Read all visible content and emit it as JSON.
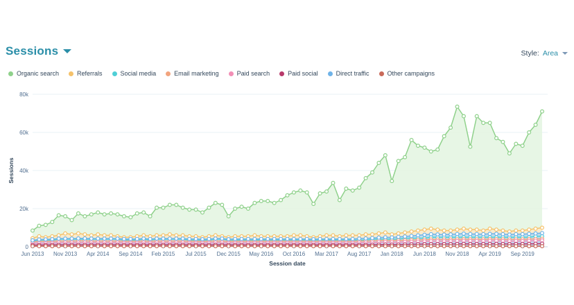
{
  "header": {
    "title": "Sessions"
  },
  "style_control": {
    "label": "Style:",
    "value": "Area"
  },
  "chart_data": {
    "type": "area",
    "title": "Sessions",
    "xlabel": "Session date",
    "ylabel": "Sessions",
    "ylim": [
      0,
      80000
    ],
    "yticks": [
      0,
      20000,
      40000,
      60000,
      80000
    ],
    "ytick_labels": [
      "0",
      "20k",
      "40k",
      "60k",
      "80k"
    ],
    "xtick_labels": [
      "Jun 2013",
      "Nov 2013",
      "Apr 2014",
      "Sep 2014",
      "Feb 2015",
      "Jul 2015",
      "Dec 2015",
      "May 2016",
      "Oct 2016",
      "Mar 2017",
      "Aug 2017",
      "Jan 2018",
      "Jun 2018",
      "Nov 2018",
      "Apr 2019",
      "Sep 2019"
    ],
    "xtick_index": [
      0,
      5,
      10,
      15,
      20,
      25,
      30,
      35,
      40,
      45,
      50,
      55,
      60,
      65,
      70,
      75
    ],
    "grid": true,
    "legend_position": "top-left",
    "n_points": 79,
    "series": [
      {
        "name": "Organic search",
        "color": "#8fd18b",
        "fill": "#e3f4e0",
        "values": [
          8500,
          11000,
          11500,
          13000,
          16500,
          16000,
          14000,
          17500,
          16000,
          17000,
          18000,
          17000,
          17500,
          17000,
          16000,
          15500,
          17500,
          18000,
          16000,
          20500,
          20500,
          22000,
          22000,
          20500,
          19500,
          19500,
          18000,
          20500,
          23000,
          22000,
          16000,
          20000,
          21000,
          20000,
          23000,
          24000,
          24000,
          23000,
          24500,
          27000,
          28500,
          29500,
          28500,
          22500,
          28000,
          29000,
          33500,
          24500,
          30500,
          29500,
          31000,
          36000,
          39000,
          44000,
          48000,
          34500,
          45000,
          47000,
          56000,
          53000,
          52000,
          50000,
          51000,
          58000,
          62500,
          73500,
          68500,
          52500,
          68500,
          65000,
          65000,
          57000,
          55000,
          49000,
          54000,
          53000,
          60000,
          64000,
          71000
        ]
      },
      {
        "name": "Referrals",
        "color": "#f5c26b",
        "fill": "#fbe9c9",
        "values": [
          4500,
          5500,
          5000,
          5500,
          6000,
          7000,
          6500,
          7000,
          6500,
          6000,
          6500,
          6000,
          6000,
          5500,
          5000,
          5000,
          5500,
          6000,
          5500,
          6000,
          6000,
          6500,
          6000,
          6000,
          5500,
          5500,
          5000,
          5500,
          6000,
          5500,
          5000,
          5500,
          5500,
          5500,
          6000,
          5500,
          5500,
          5500,
          5500,
          5500,
          6000,
          6000,
          5500,
          5000,
          5500,
          6000,
          6000,
          5500,
          6000,
          6000,
          6000,
          6500,
          6500,
          7000,
          7500,
          6500,
          7000,
          7500,
          8000,
          8500,
          9000,
          9500,
          9000,
          8500,
          8500,
          9000,
          9500,
          9000,
          9000,
          8500,
          9500,
          9000,
          8500,
          8000,
          8500,
          8500,
          9000,
          9500,
          10000
        ]
      },
      {
        "name": "Social media",
        "color": "#4fcfd6",
        "fill": "#bfe7ea",
        "values": [
          3000,
          3500,
          3500,
          3500,
          4000,
          4000,
          4000,
          4000,
          4000,
          4000,
          4000,
          4000,
          4000,
          4000,
          3500,
          3500,
          3500,
          4000,
          3500,
          4000,
          4000,
          4000,
          4000,
          4000,
          3500,
          3500,
          3500,
          3500,
          4000,
          4000,
          3500,
          3500,
          3500,
          3500,
          3500,
          3500,
          3500,
          3500,
          3500,
          3500,
          3500,
          3500,
          3500,
          3500,
          3500,
          3500,
          3500,
          3500,
          3500,
          3500,
          3500,
          3500,
          4000,
          4000,
          4000,
          4000,
          4000,
          4500,
          4500,
          4500,
          4500,
          5000,
          5000,
          5000,
          5000,
          5000,
          5000,
          5000,
          5000,
          5000,
          5000,
          5000,
          5000,
          5000,
          5000,
          5000,
          5000,
          5500,
          5500
        ]
      },
      {
        "name": "Email marketing",
        "color": "#f2a47e",
        "fill": "#f8d5c3",
        "values": [
          2600,
          2800,
          2800,
          2900,
          3000,
          3000,
          3000,
          3100,
          3100,
          3000,
          3000,
          3000,
          3000,
          3000,
          2900,
          2900,
          2900,
          3000,
          2900,
          3000,
          3000,
          3000,
          3000,
          3000,
          2900,
          2900,
          2800,
          2900,
          3000,
          3000,
          2800,
          2900,
          2900,
          2900,
          2900,
          2900,
          2900,
          2900,
          2900,
          2900,
          2900,
          2900,
          2900,
          2800,
          2900,
          2900,
          2900,
          2900,
          2900,
          2900,
          3000,
          3000,
          3100,
          3200,
          3300,
          3200,
          3300,
          3400,
          3500,
          3600,
          3700,
          3800,
          3800,
          3800,
          3800,
          3900,
          4000,
          3900,
          3900,
          3900,
          4000,
          4000,
          3900,
          3800,
          3900,
          3900,
          4000,
          4100,
          4200
        ]
      },
      {
        "name": "Paid search",
        "color": "#f28fb6",
        "fill": "#f9d2e2",
        "values": [
          1800,
          1900,
          1900,
          2000,
          2100,
          2100,
          2100,
          2100,
          2100,
          2100,
          2100,
          2100,
          2100,
          2100,
          2000,
          2000,
          2000,
          2100,
          2000,
          2100,
          2100,
          2100,
          2100,
          2100,
          2000,
          2000,
          2000,
          2000,
          2100,
          2100,
          2000,
          2000,
          2000,
          2000,
          2000,
          2000,
          2000,
          2000,
          2000,
          2000,
          2000,
          2000,
          2000,
          2000,
          2000,
          2000,
          2000,
          2000,
          2000,
          2000,
          2100,
          2100,
          2200,
          2300,
          2400,
          2300,
          2400,
          2500,
          2600,
          2700,
          2800,
          2900,
          2900,
          2900,
          2900,
          3000,
          3100,
          3000,
          3000,
          3000,
          3100,
          3100,
          3000,
          2900,
          3000,
          3000,
          3100,
          3200,
          3300
        ]
      },
      {
        "name": "Paid social",
        "color": "#b83a6b",
        "fill": "#d8a0b6",
        "values": [
          900,
          950,
          950,
          1000,
          1050,
          1050,
          1050,
          1050,
          1050,
          1050,
          1050,
          1050,
          1050,
          1050,
          1000,
          1000,
          1000,
          1050,
          1000,
          1050,
          1050,
          1050,
          1050,
          1050,
          1000,
          1000,
          1000,
          1000,
          1050,
          1050,
          1000,
          1000,
          1000,
          1000,
          1000,
          1000,
          1000,
          1000,
          1000,
          1000,
          1000,
          1000,
          1000,
          1000,
          1000,
          1000,
          1000,
          1000,
          1000,
          1000,
          1050,
          1050,
          1100,
          1150,
          1200,
          1150,
          1200,
          1250,
          1300,
          1350,
          1400,
          1450,
          1450,
          1450,
          1450,
          1500,
          1550,
          1500,
          1500,
          1500,
          1550,
          1550,
          1500,
          1450,
          1500,
          1500,
          1550,
          1600,
          1650
        ]
      },
      {
        "name": "Direct traffic",
        "color": "#6fb3e8",
        "fill": "#bad9f2",
        "values": [
          3400,
          3800,
          3900,
          4000,
          4300,
          4300,
          4300,
          4400,
          4400,
          4300,
          4300,
          4300,
          4300,
          4300,
          4100,
          4100,
          4100,
          4300,
          4100,
          4300,
          4300,
          4300,
          4300,
          4300,
          4100,
          4100,
          4000,
          4100,
          4300,
          4300,
          4000,
          4100,
          4100,
          4100,
          4100,
          4100,
          4100,
          4100,
          4100,
          4100,
          4100,
          4100,
          4100,
          4000,
          4100,
          4100,
          4100,
          4100,
          4100,
          4100,
          4300,
          4400,
          4600,
          4800,
          5000,
          4900,
          5200,
          5400,
          5700,
          6000,
          6300,
          6600,
          6500,
          6400,
          6500,
          6700,
          6900,
          6700,
          6700,
          6600,
          6800,
          6800,
          6600,
          6400,
          6600,
          6600,
          6800,
          7000,
          7200
        ]
      },
      {
        "name": "Other campaigns",
        "color": "#c96a5a",
        "fill": "#e7bdb4",
        "values": [
          300,
          300,
          300,
          300,
          300,
          300,
          300,
          300,
          300,
          300,
          300,
          300,
          300,
          300,
          300,
          300,
          300,
          300,
          300,
          300,
          300,
          300,
          300,
          300,
          300,
          300,
          300,
          300,
          300,
          300,
          300,
          300,
          300,
          300,
          300,
          300,
          300,
          300,
          300,
          300,
          300,
          300,
          300,
          300,
          300,
          300,
          300,
          300,
          300,
          300,
          300,
          300,
          300,
          300,
          300,
          300,
          300,
          300,
          300,
          300,
          300,
          300,
          300,
          300,
          300,
          300,
          300,
          300,
          300,
          300,
          300,
          300,
          300,
          300,
          300,
          300,
          300,
          300,
          300
        ]
      }
    ]
  }
}
